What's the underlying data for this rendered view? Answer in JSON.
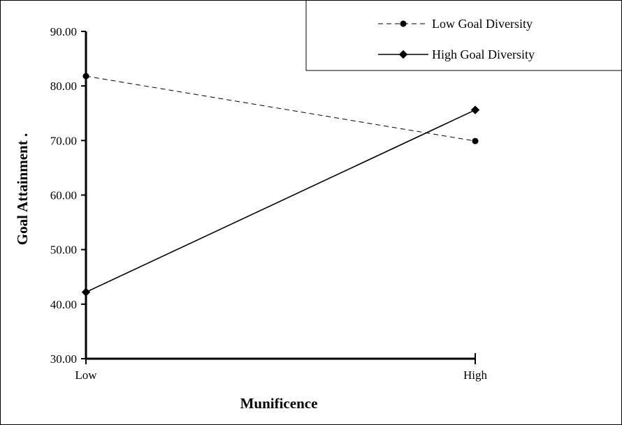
{
  "chart_data": {
    "type": "line",
    "categories": [
      "Low",
      "High"
    ],
    "series": [
      {
        "name": "Low Goal Diversity",
        "values": [
          81.8,
          69.9
        ],
        "line_style": "dashed",
        "marker": "circle",
        "color": "#000000"
      },
      {
        "name": "High Goal Diversity",
        "values": [
          42.2,
          75.6
        ],
        "line_style": "solid",
        "marker": "diamond",
        "color": "#000000"
      }
    ],
    "title": "",
    "xlabel": "Munificence",
    "ylabel": "Goal Attainment .",
    "ylim": [
      30,
      90
    ],
    "yticks": [
      "30.00",
      "40.00",
      "50.00",
      "60.00",
      "70.00",
      "80.00",
      "90.00"
    ],
    "grid": false,
    "legend_position": "top-right"
  }
}
